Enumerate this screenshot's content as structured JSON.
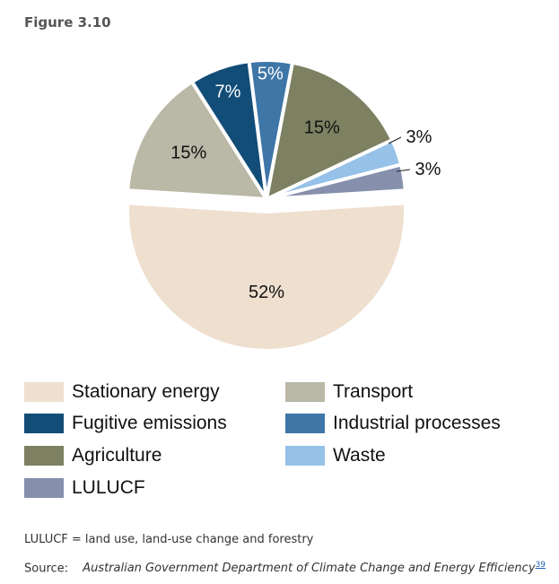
{
  "figure": {
    "label": "Figure 3.10"
  },
  "chart_data": {
    "type": "pie",
    "slices": [
      {
        "name": "Stationary energy",
        "value": 52,
        "label": "52%",
        "color": "#efdfcf"
      },
      {
        "name": "Transport",
        "value": 15,
        "label": "15%",
        "color": "#bab8a6"
      },
      {
        "name": "Fugitive emissions",
        "value": 7,
        "label": "7%",
        "color": "#124d78"
      },
      {
        "name": "Industrial processes",
        "value": 5,
        "label": "5%",
        "color": "#3f76a8"
      },
      {
        "name": "Agriculture",
        "value": 15,
        "label": "15%",
        "color": "#7d8162"
      },
      {
        "name": "Waste",
        "value": 3,
        "label": "3%",
        "color": "#96c1e8"
      },
      {
        "name": "LULUCF",
        "value": 3,
        "label": "3%",
        "color": "#8690ad"
      }
    ],
    "legend": [
      {
        "name": "Stationary energy",
        "color": "#efdfcf"
      },
      {
        "name": "Transport",
        "color": "#bab8a6"
      },
      {
        "name": "Fugitive emissions",
        "color": "#124d78"
      },
      {
        "name": "Industrial processes",
        "color": "#3f76a8"
      },
      {
        "name": "Agriculture",
        "color": "#7d8162"
      },
      {
        "name": "Waste",
        "color": "#96c1e8"
      },
      {
        "name": "LULUCF",
        "color": "#8690ad"
      }
    ],
    "legend_position": "bottom"
  },
  "footnote": "LULUCF = land use, land-use change and forestry",
  "source": {
    "label": "Source:",
    "text": "Australian Government Department of Climate Change and Energy Efficiency",
    "ref": "39"
  }
}
